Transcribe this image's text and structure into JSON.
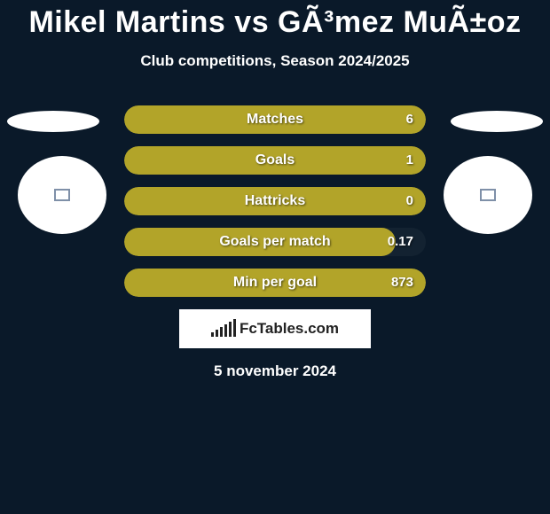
{
  "title": "Mikel Martins vs GÃ³mez MuÃ±oz",
  "subtitle": "Club competitions, Season 2024/2025",
  "bar_color": "#b2a429",
  "bg_color": "#0a1929",
  "text_color": "#ffffff",
  "text_shadow": "rgba(0,0,0,0.6)",
  "stats": [
    {
      "label": "Matches",
      "value": "6",
      "fill_pct": 100
    },
    {
      "label": "Goals",
      "value": "1",
      "fill_pct": 100
    },
    {
      "label": "Hattricks",
      "value": "0",
      "fill_pct": 100
    },
    {
      "label": "Goals per match",
      "value": "0.17",
      "fill_pct": 90
    },
    {
      "label": "Min per goal",
      "value": "873",
      "fill_pct": 100
    }
  ],
  "footer_brand": "FcTables.com",
  "date": "5 november 2024",
  "logo_bar_heights": [
    5,
    8,
    11,
    14,
    17,
    20
  ]
}
